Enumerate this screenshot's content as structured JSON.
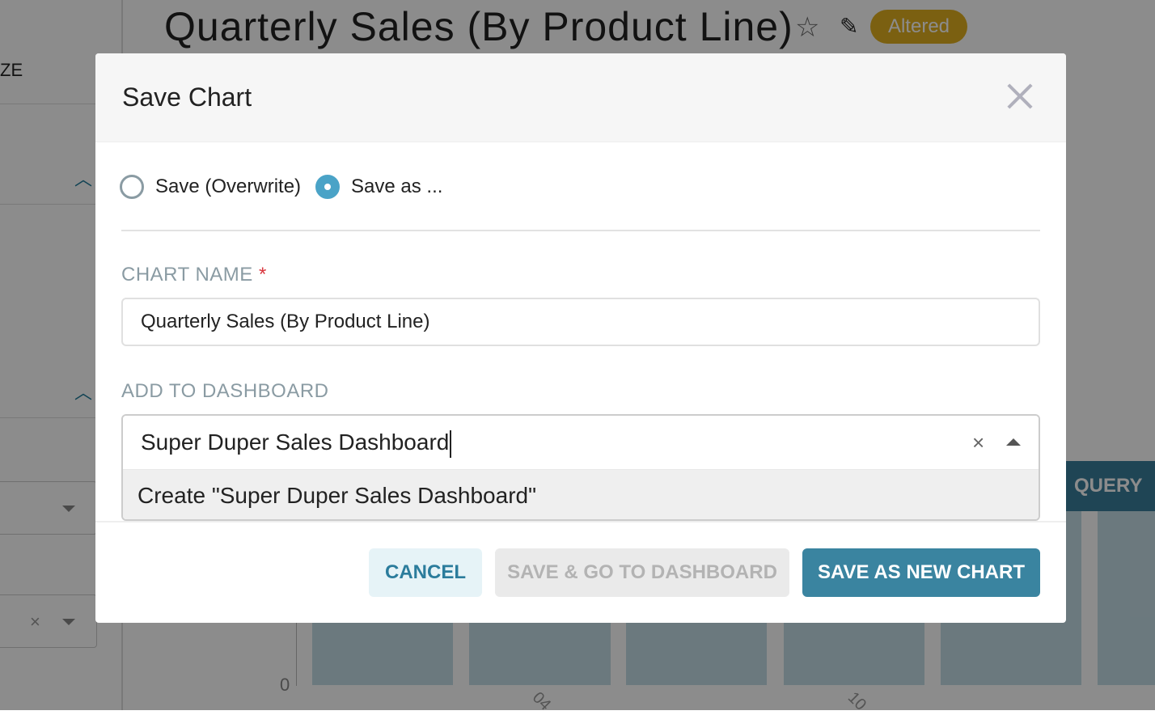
{
  "background": {
    "chart_title": "Quarterly Sales (By Product Line)",
    "status_badge": "Altered",
    "sidebar_label_fragment": "ZE",
    "query_button_fragment": "QUERY",
    "y_axis_tick": "0",
    "x_ticks": [
      "04",
      "10"
    ],
    "colors": {
      "badge": "#e0b020",
      "query_button": "#3a7f9c",
      "bars": "#c4dde6"
    }
  },
  "modal": {
    "title": "Save Chart",
    "close_icon": "close-icon",
    "radios": [
      {
        "label": "Save (Overwrite)",
        "checked": false
      },
      {
        "label": "Save as ...",
        "checked": true
      }
    ],
    "chart_name": {
      "label": "CHART NAME",
      "required_mark": "*",
      "value": "Quarterly Sales (By Product Line)"
    },
    "dashboard": {
      "label": "ADD TO DASHBOARD",
      "value": "Super Duper Sales Dashboard",
      "option": "Create \"Super Duper Sales Dashboard\""
    },
    "buttons": {
      "cancel": "CANCEL",
      "save_go": "SAVE & GO TO DASHBOARD",
      "save_new": "SAVE AS NEW CHART"
    },
    "colors": {
      "primary": "#3a84a0",
      "radio_checked": "#4aa3c7",
      "required": "#d9363e"
    }
  }
}
